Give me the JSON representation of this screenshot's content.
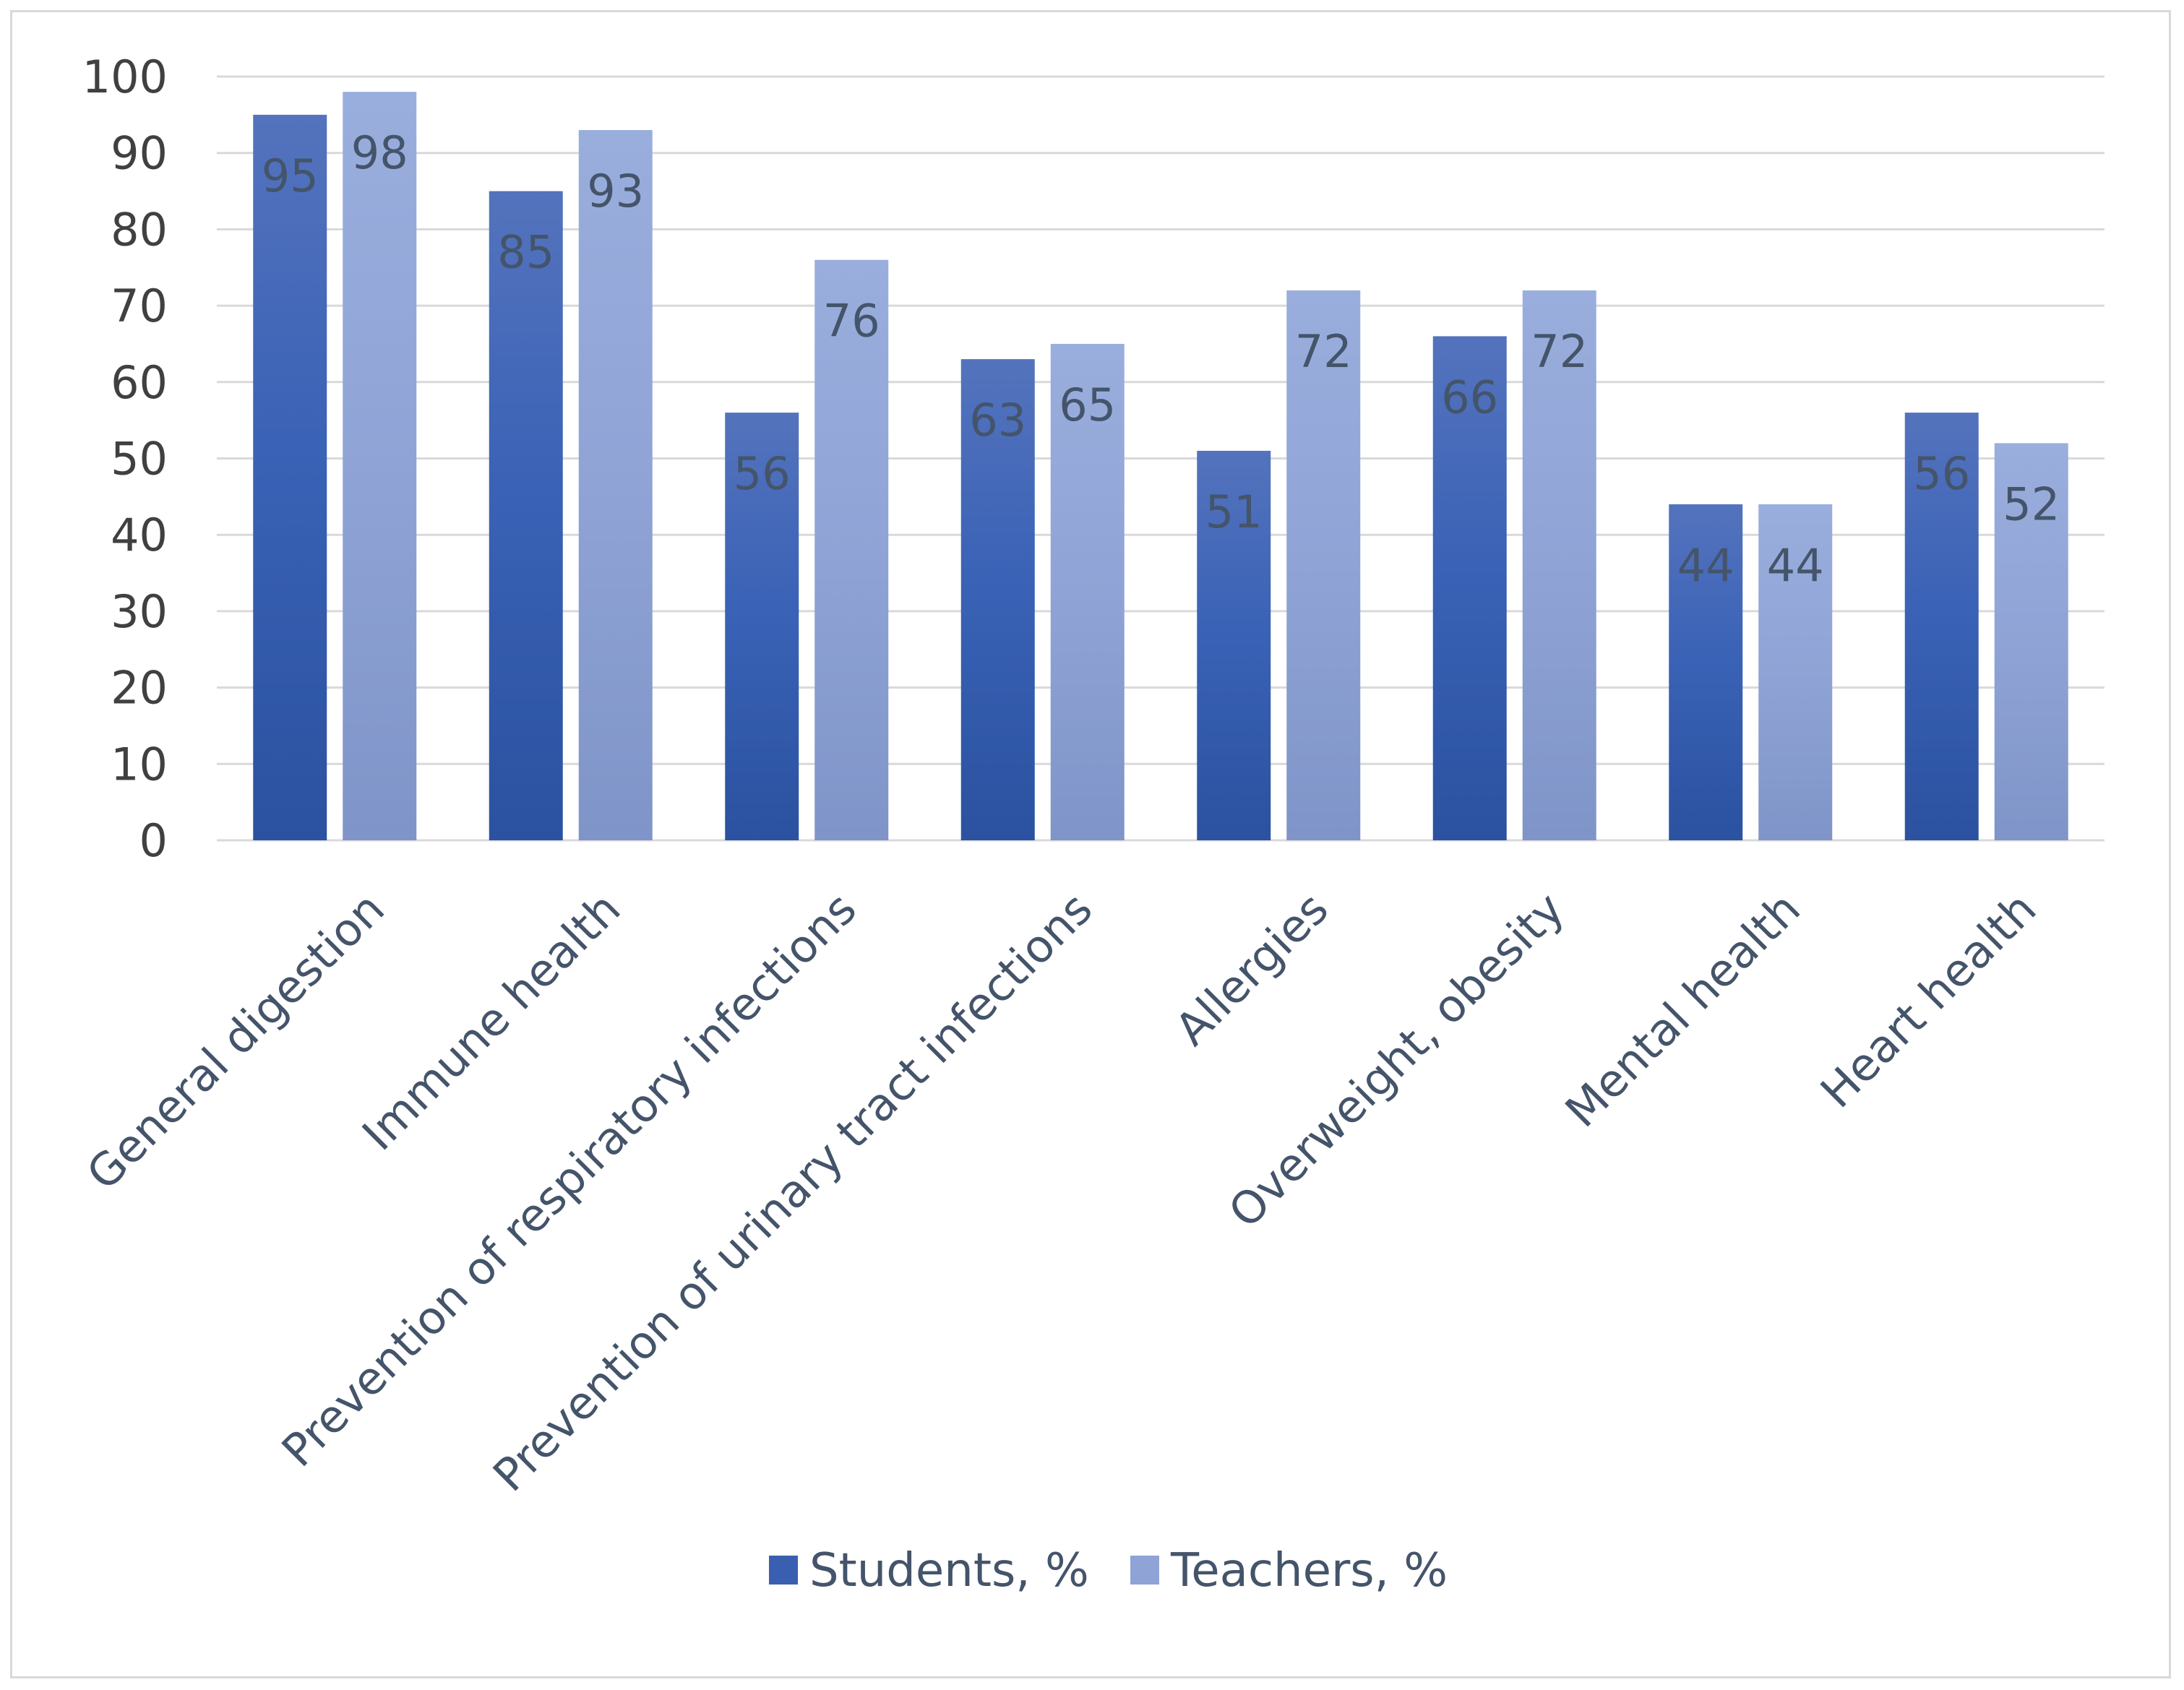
{
  "chart_data": {
    "type": "bar",
    "title": "",
    "xlabel": "",
    "ylabel": "",
    "ylim": [
      0,
      100
    ],
    "yticks": [
      0,
      10,
      20,
      30,
      40,
      50,
      60,
      70,
      80,
      90,
      100
    ],
    "grid": true,
    "legend_position": "bottom",
    "categories": [
      "General digestion",
      "Immune health",
      "Prevention of respiratory infections",
      "Prevention of urinary tract infections",
      "Allergies",
      "Overweight, obesity",
      "Mental health",
      "Heart health"
    ],
    "series": [
      {
        "name": "Students, %",
        "values": [
          95,
          85,
          56,
          63,
          51,
          66,
          44,
          56
        ],
        "color": "#3a5fb0"
      },
      {
        "name": "Teachers, %",
        "values": [
          98,
          93,
          76,
          65,
          72,
          72,
          44,
          52
        ],
        "color": "#8fa3d6"
      }
    ]
  }
}
